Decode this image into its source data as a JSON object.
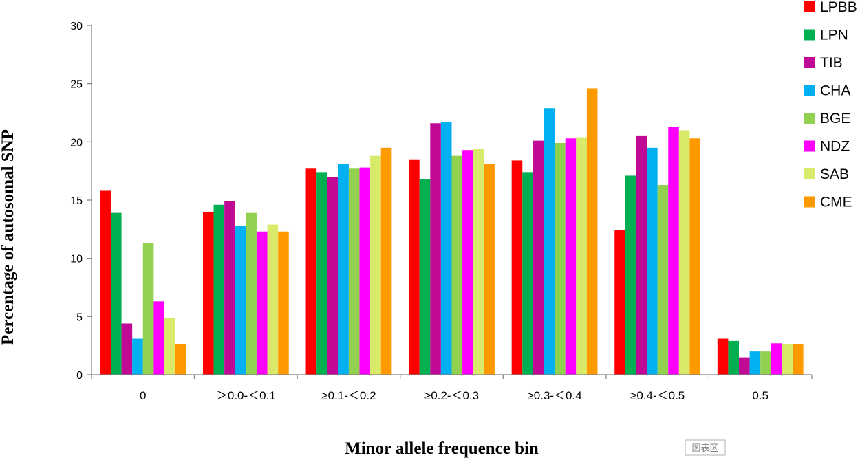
{
  "chart_data": {
    "type": "bar",
    "title": "",
    "xlabel": "Minor allele frequence bin",
    "ylabel": "Percentage of  autosomal SNP",
    "ylim": [
      0,
      30
    ],
    "yticks": [
      0,
      5,
      10,
      15,
      20,
      25,
      30
    ],
    "grid": false,
    "legend_position": "right",
    "categories": [
      "0",
      "＞0.0-＜0.1",
      "≥0.1-＜0.2",
      "≥0.2-＜0.3",
      "≥0.3-＜0.4",
      "≥0.4-＜0.5",
      "0.5"
    ],
    "series": [
      {
        "name": "LPBB",
        "color": "#ff0000",
        "values": [
          15.8,
          14.0,
          17.7,
          18.5,
          18.4,
          12.4,
          3.1
        ]
      },
      {
        "name": "LPN",
        "color": "#00b050",
        "values": [
          13.9,
          14.6,
          17.4,
          16.8,
          17.4,
          17.1,
          2.9
        ]
      },
      {
        "name": "TIB",
        "color": "#c00a96",
        "values": [
          4.4,
          14.9,
          17.0,
          21.6,
          20.1,
          20.5,
          1.5
        ]
      },
      {
        "name": "CHA",
        "color": "#00b0f0",
        "values": [
          3.1,
          12.8,
          18.1,
          21.7,
          22.9,
          19.5,
          2.0
        ]
      },
      {
        "name": "BGE",
        "color": "#92d050",
        "values": [
          11.3,
          13.9,
          17.7,
          18.8,
          19.9,
          16.3,
          2.0
        ]
      },
      {
        "name": "NDZ",
        "color": "#ff00ff",
        "values": [
          6.3,
          12.3,
          17.8,
          19.3,
          20.3,
          21.3,
          2.7
        ]
      },
      {
        "name": "SAB",
        "color": "#d9ea6b",
        "values": [
          4.9,
          12.9,
          18.8,
          19.4,
          20.4,
          21.0,
          2.6
        ]
      },
      {
        "name": "CME",
        "color": "#ff9900",
        "values": [
          2.6,
          12.3,
          19.5,
          18.1,
          24.6,
          20.3,
          2.6
        ]
      }
    ]
  },
  "watermark": {
    "label": "图表区"
  }
}
